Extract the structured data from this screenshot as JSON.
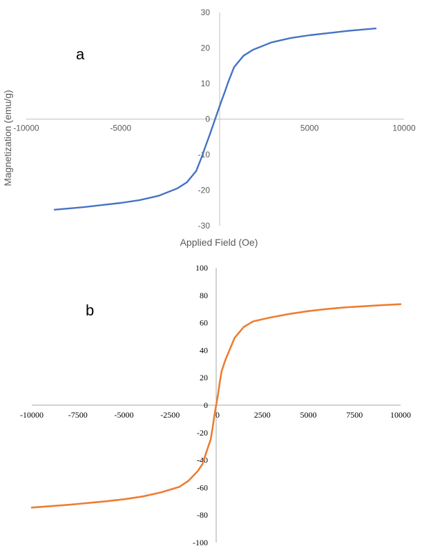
{
  "chart_data": [
    {
      "type": "line",
      "panel_label": "a",
      "xlabel": "Applied Field (Oe)",
      "ylabel": "Magnetization (emu/g)",
      "xlim": [
        -10000,
        10000
      ],
      "ylim": [
        -30,
        30
      ],
      "x_ticks": [
        "-10000",
        "-5000",
        "0",
        "5000",
        "10000"
      ],
      "y_ticks": [
        "30",
        "20",
        "10",
        "0",
        "-10",
        "-20",
        "-30"
      ],
      "grid": false,
      "colors": {
        "series": "#4472C4",
        "axis": "#BFBFBF",
        "text": "#595959"
      },
      "series": [
        {
          "x": [
            -8500,
            -7000,
            -6000,
            -5000,
            -4000,
            -3000,
            -2000,
            -1500,
            -1000,
            -700,
            -500,
            -300,
            -150,
            0,
            150,
            300,
            500,
            700,
            1000,
            1500,
            2000,
            3000,
            4000,
            5000,
            6000,
            7000,
            8500
          ],
          "y": [
            -25.5,
            -24.8,
            -24.2,
            -23.6,
            -22.8,
            -21.6,
            -19.5,
            -17.8,
            -14.6,
            -10.5,
            -7.5,
            -4.6,
            -2.3,
            0,
            2.3,
            4.6,
            7.5,
            10.5,
            14.6,
            17.8,
            19.5,
            21.6,
            22.8,
            23.6,
            24.2,
            24.8,
            25.5
          ]
        }
      ]
    },
    {
      "type": "line",
      "panel_label": "b",
      "xlim": [
        -10000,
        10000
      ],
      "ylim": [
        -100,
        100
      ],
      "x_ticks": [
        "-10000",
        "-7500",
        "-5000",
        "-2500",
        "0",
        "2500",
        "5000",
        "7500",
        "10000"
      ],
      "y_ticks": [
        "100",
        "80",
        "60",
        "40",
        "20",
        "0",
        "-20",
        "-40",
        "-60",
        "-80",
        "-100"
      ],
      "grid": false,
      "colors": {
        "series": "#ED7D31",
        "axis": "#A6A6A6",
        "text": "#000000"
      },
      "series": [
        {
          "x": [
            -10000,
            -8000,
            -6000,
            -5000,
            -4000,
            -3000,
            -2000,
            -1500,
            -1000,
            -750,
            -500,
            -300,
            -200,
            -100,
            0,
            100,
            200,
            300,
            500,
            1000,
            1500,
            2000,
            3000,
            4000,
            5000,
            6000,
            7000,
            8000,
            9000,
            10000
          ],
          "y": [
            -74.5,
            -72.5,
            -70,
            -68.5,
            -66.5,
            -63.5,
            -59.5,
            -55,
            -48,
            -43,
            -33,
            -25,
            -17,
            -8,
            0,
            8,
            17,
            25,
            33,
            49,
            57,
            61,
            64,
            66.5,
            68.5,
            70,
            71.2,
            72,
            72.8,
            73.5
          ]
        }
      ]
    }
  ]
}
